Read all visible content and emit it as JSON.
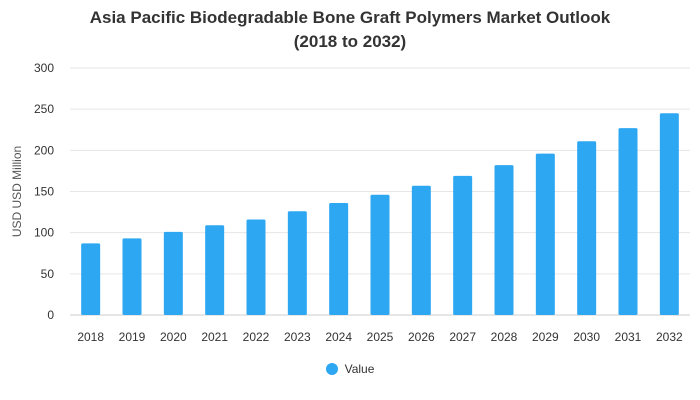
{
  "chart_data": {
    "type": "bar",
    "title_line1": "Asia Pacific Biodegradable Bone Graft Polymers Market Outlook",
    "title_line2": "(2018 to 2032)",
    "xlabel": "",
    "ylabel": "USD USD Million",
    "categories": [
      "2018",
      "2019",
      "2020",
      "2021",
      "2022",
      "2023",
      "2024",
      "2025",
      "2026",
      "2027",
      "2028",
      "2029",
      "2030",
      "2031",
      "2032"
    ],
    "series": [
      {
        "name": "Value",
        "color": "#2ea7f2",
        "values": [
          87,
          93,
          101,
          109,
          116,
          126,
          136,
          146,
          157,
          169,
          182,
          196,
          211,
          227,
          245
        ]
      }
    ],
    "ylim": [
      0,
      300
    ],
    "yticks": [
      0,
      50,
      100,
      150,
      200,
      250,
      300
    ],
    "grid": true,
    "legend_position": "bottom"
  }
}
